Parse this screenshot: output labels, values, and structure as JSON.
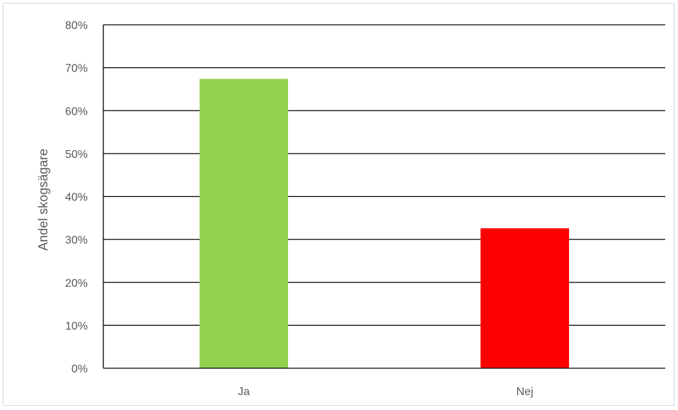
{
  "chart_data": {
    "type": "bar",
    "title": "",
    "xlabel": "",
    "ylabel": "Andel skogsägare",
    "categories": [
      "Ja",
      "Nej"
    ],
    "values": [
      67.4,
      32.6
    ],
    "value_unit": "%",
    "ylim": [
      0,
      80
    ],
    "yticks": [
      0,
      10,
      20,
      30,
      40,
      50,
      60,
      70,
      80
    ],
    "ytick_labels": [
      "0%",
      "10%",
      "20%",
      "30%",
      "40%",
      "50%",
      "60%",
      "70%",
      "80%"
    ],
    "grid": true,
    "legend": "none",
    "bar_colors": [
      "#92D050",
      "#FF0000"
    ],
    "gridline_color": "#000000",
    "text_color": "#595959"
  }
}
